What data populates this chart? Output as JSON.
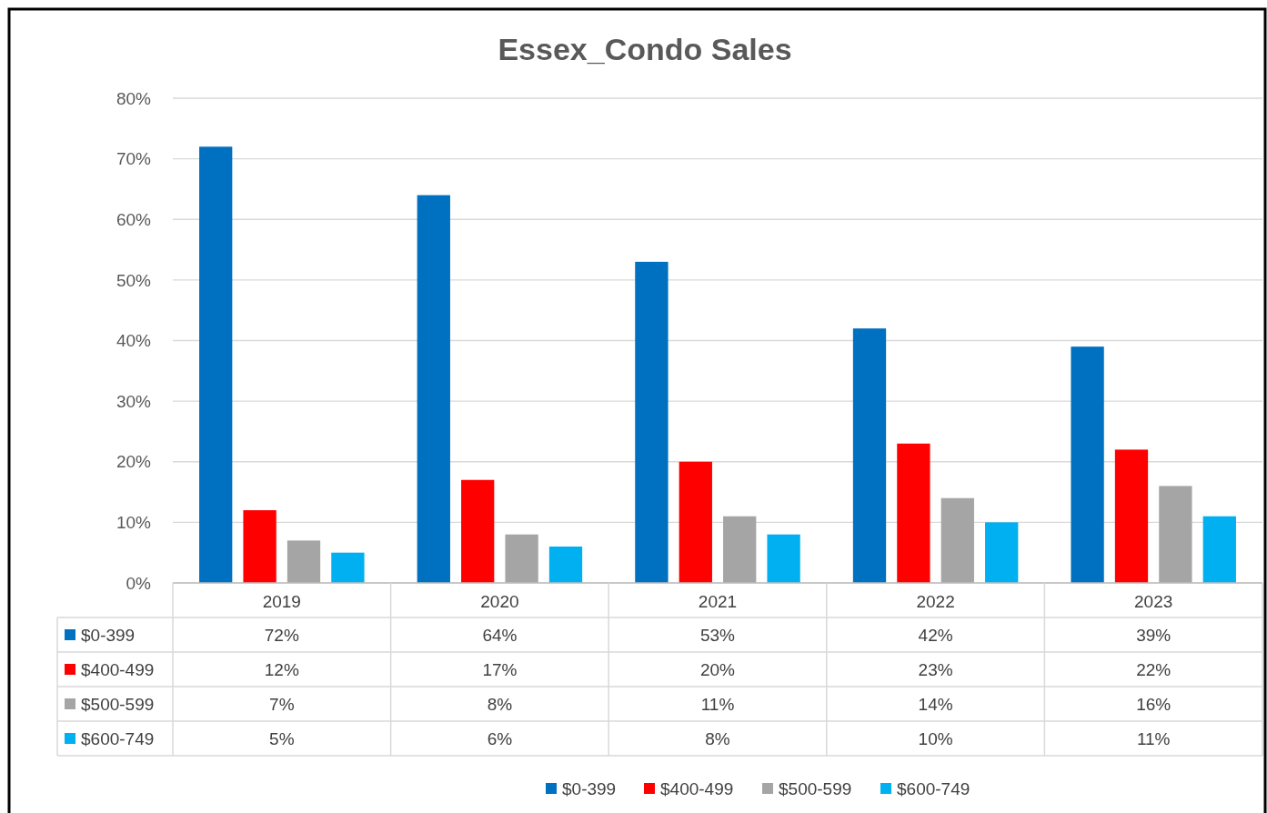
{
  "chart_data": {
    "type": "bar",
    "title": "Essex_Condo Sales",
    "categories": [
      "2019",
      "2020",
      "2021",
      "2022",
      "2023"
    ],
    "series": [
      {
        "name": "$0-399",
        "color": "#0070c0",
        "values": [
          72,
          64,
          53,
          42,
          39
        ],
        "value_labels": [
          "72%",
          "64%",
          "53%",
          "42%",
          "39%"
        ]
      },
      {
        "name": "$400-499",
        "color": "#ff0000",
        "values": [
          12,
          17,
          20,
          23,
          22
        ],
        "value_labels": [
          "12%",
          "17%",
          "20%",
          "23%",
          "22%"
        ]
      },
      {
        "name": "$500-599",
        "color": "#a5a5a5",
        "values": [
          7,
          8,
          11,
          14,
          16
        ],
        "value_labels": [
          "7%",
          "8%",
          "11%",
          "14%",
          "16%"
        ]
      },
      {
        "name": "$600-749",
        "color": "#00b0f0",
        "values": [
          5,
          6,
          8,
          10,
          11
        ],
        "value_labels": [
          "5%",
          "6%",
          "8%",
          "10%",
          "11%"
        ]
      }
    ],
    "ylim": [
      0,
      80
    ],
    "yticks": [
      {
        "value": 0,
        "label": "0%"
      },
      {
        "value": 10,
        "label": "10%"
      },
      {
        "value": 20,
        "label": "20%"
      },
      {
        "value": 30,
        "label": "30%"
      },
      {
        "value": 40,
        "label": "40%"
      },
      {
        "value": 50,
        "label": "50%"
      },
      {
        "value": 60,
        "label": "60%"
      },
      {
        "value": 70,
        "label": "70%"
      },
      {
        "value": 80,
        "label": "80%"
      }
    ],
    "grid": "y",
    "legend": "bottom"
  }
}
